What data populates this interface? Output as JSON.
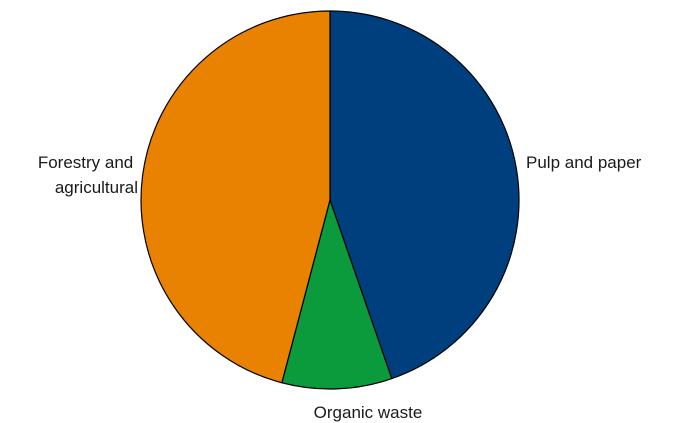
{
  "chart_data": {
    "type": "pie",
    "title": "",
    "start_angle_deg": 0,
    "direction": "clockwise",
    "slices": [
      {
        "label": "Pulp and paper",
        "value": 44.7,
        "color": "#003f7d"
      },
      {
        "label": "Organic waste",
        "value": 9.4,
        "color": "#0b9a3c"
      },
      {
        "label": "Forestry and agricultural",
        "value": 45.9,
        "color": "#e88200"
      }
    ],
    "legend": "none"
  }
}
